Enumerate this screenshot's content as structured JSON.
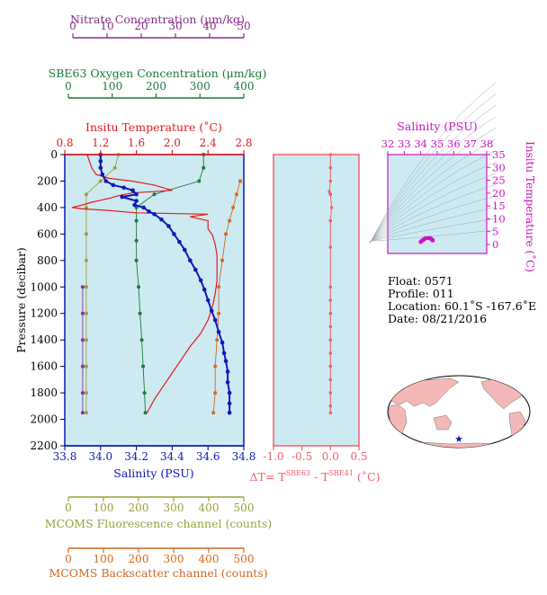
{
  "colors": {
    "nitrate": "#8a2e8a",
    "oxygen": "#1a7a3a",
    "temperature": "#e31a1c",
    "salinity": "#0a1ab8",
    "fluorescence": "#9aa03a",
    "backscatter": "#d2691e",
    "delta_t": "#f06070",
    "ts_axis": "#d010c0",
    "panel_bg": "#cdeaf2",
    "land": "#f4b8b8"
  },
  "axes": {
    "nitrate": {
      "label": "Nitrate Concentration (μm/kg)",
      "ticks": [
        "0",
        "10",
        "20",
        "30",
        "40",
        "50"
      ]
    },
    "oxygen": {
      "label": "SBE63 Oxygen Concentration (μm/kg)",
      "ticks": [
        "0",
        "100",
        "200",
        "300",
        "400"
      ]
    },
    "temperature": {
      "label": "Insitu Temperature (˚C)",
      "ticks": [
        "0.8",
        "1.2",
        "1.6",
        "2.0",
        "2.4",
        "2.8"
      ]
    },
    "salinity": {
      "label": "Salinity (PSU)",
      "ticks": [
        "33.8",
        "34.0",
        "34.2",
        "34.4",
        "34.6",
        "34.8"
      ]
    },
    "pressure": {
      "label": "Pressure (decibar)",
      "ticks": [
        "0",
        "200",
        "400",
        "600",
        "800",
        "1000",
        "1200",
        "1400",
        "1600",
        "1800",
        "2000",
        "2200"
      ]
    },
    "fluorescence": {
      "label": "MCOMS Fluorescence channel (counts)",
      "ticks": [
        "0",
        "100",
        "200",
        "300",
        "400",
        "500"
      ]
    },
    "backscatter": {
      "label": "MCOMS Backscatter channel (counts)",
      "ticks": [
        "0",
        "100",
        "200",
        "300",
        "400",
        "500"
      ]
    },
    "delta_t": {
      "label_prefix": "ΔT= T",
      "sup1": "SBE63",
      "mid": " - T",
      "sup2": "SBE41",
      "units": " (˚C)",
      "ticks": [
        "-1.0",
        "-0.5",
        "0.0",
        "0.5"
      ]
    },
    "ts_salinity": {
      "label": "Salinity (PSU)",
      "ticks": [
        "32",
        "33",
        "34",
        "35",
        "36",
        "37",
        "38"
      ]
    },
    "ts_temperature": {
      "label": "Insitu Temperature (˚C)",
      "ticks": [
        "0",
        "5",
        "10",
        "15",
        "20",
        "25",
        "30",
        "35"
      ]
    }
  },
  "info": {
    "float": "Float:  0571",
    "profile": "Profile:  011",
    "location": "Location:  60.1˚S  -167.6˚E",
    "date": "Date:  08/21/2016"
  },
  "chart_data": [
    {
      "type": "line",
      "panel": "main profile",
      "y_axis": "Pressure (decibar)",
      "ylim": [
        0,
        2200
      ],
      "y_inverted": true,
      "series": [
        {
          "name": "Salinity (PSU)",
          "xlim": [
            33.8,
            34.8
          ],
          "markers": true,
          "points": [
            [
              34.0,
              0
            ],
            [
              34.0,
              50
            ],
            [
              34.0,
              100
            ],
            [
              34.01,
              150
            ],
            [
              34.03,
              200
            ],
            [
              34.07,
              230
            ],
            [
              34.13,
              250
            ],
            [
              34.18,
              270
            ],
            [
              34.2,
              300
            ],
            [
              34.12,
              320
            ],
            [
              34.2,
              350
            ],
            [
              34.19,
              380
            ],
            [
              34.24,
              400
            ],
            [
              34.27,
              430
            ],
            [
              34.3,
              450
            ],
            [
              34.34,
              490
            ],
            [
              34.38,
              540
            ],
            [
              34.41,
              600
            ],
            [
              34.44,
              660
            ],
            [
              34.47,
              720
            ],
            [
              34.5,
              800
            ],
            [
              34.53,
              870
            ],
            [
              34.56,
              950
            ],
            [
              34.58,
              1020
            ],
            [
              34.6,
              1100
            ],
            [
              34.62,
              1180
            ],
            [
              34.64,
              1250
            ],
            [
              34.66,
              1340
            ],
            [
              34.68,
              1420
            ],
            [
              34.69,
              1500
            ],
            [
              34.7,
              1560
            ],
            [
              34.71,
              1640
            ],
            [
              34.71,
              1720
            ],
            [
              34.72,
              1800
            ],
            [
              34.72,
              1880
            ],
            [
              34.72,
              1950
            ]
          ]
        },
        {
          "name": "Insitu Temperature (˚C)",
          "xlim": [
            0.8,
            2.8
          ],
          "markers": false,
          "points": [
            [
              1.05,
              0
            ],
            [
              1.1,
              100
            ],
            [
              1.15,
              150
            ],
            [
              1.3,
              180
            ],
            [
              1.55,
              200
            ],
            [
              1.8,
              230
            ],
            [
              2.0,
              270
            ],
            [
              1.55,
              290
            ],
            [
              1.4,
              310
            ],
            [
              1.3,
              330
            ],
            [
              1.1,
              360
            ],
            [
              1.0,
              380
            ],
            [
              0.88,
              400
            ],
            [
              1.0,
              410
            ],
            [
              1.25,
              420
            ],
            [
              1.6,
              440
            ],
            [
              2.4,
              450
            ],
            [
              2.2,
              470
            ],
            [
              2.4,
              500
            ],
            [
              2.4,
              560
            ],
            [
              2.45,
              610
            ],
            [
              2.48,
              680
            ],
            [
              2.5,
              760
            ],
            [
              2.5,
              850
            ],
            [
              2.5,
              950
            ],
            [
              2.48,
              1050
            ],
            [
              2.45,
              1150
            ],
            [
              2.4,
              1250
            ],
            [
              2.32,
              1350
            ],
            [
              2.2,
              1450
            ],
            [
              2.1,
              1550
            ],
            [
              2.0,
              1650
            ],
            [
              1.9,
              1750
            ],
            [
              1.8,
              1850
            ],
            [
              1.72,
              1950
            ]
          ]
        },
        {
          "name": "SBE63 Oxygen Concentration (μm/kg)",
          "xlim": [
            0,
            400
          ],
          "markers": true,
          "points": [
            [
              310,
              0
            ],
            [
              310,
              100
            ],
            [
              300,
              200
            ],
            [
              200,
              300
            ],
            [
              160,
              400
            ],
            [
              160,
              500
            ],
            [
              160,
              650
            ],
            [
              160,
              800
            ],
            [
              165,
              1000
            ],
            [
              168,
              1200
            ],
            [
              172,
              1400
            ],
            [
              175,
              1600
            ],
            [
              178,
              1800
            ],
            [
              180,
              1950
            ]
          ]
        },
        {
          "name": "MCOMS Fluorescence channel (counts)",
          "xlim": [
            0,
            500
          ],
          "markers": true,
          "points": [
            [
              150,
              0
            ],
            [
              140,
              100
            ],
            [
              100,
              200
            ],
            [
              60,
              300
            ],
            [
              60,
              400
            ],
            [
              60,
              600
            ],
            [
              60,
              800
            ],
            [
              60,
              1000
            ],
            [
              60,
              1200
            ],
            [
              60,
              1400
            ],
            [
              60,
              1600
            ],
            [
              60,
              1800
            ],
            [
              60,
              1950
            ]
          ]
        },
        {
          "name": "MCOMS Backscatter channel (counts)",
          "xlim": [
            0,
            500
          ],
          "markers": true,
          "points": [
            [
              490,
              200
            ],
            [
              480,
              300
            ],
            [
              470,
              400
            ],
            [
              460,
              500
            ],
            [
              450,
              600
            ],
            [
              440,
              800
            ],
            [
              430,
              1000
            ],
            [
              430,
              1200
            ],
            [
              425,
              1400
            ],
            [
              420,
              1600
            ],
            [
              420,
              1800
            ],
            [
              415,
              1950
            ]
          ]
        },
        {
          "name": "Nitrate Concentration (μm/kg)",
          "xlim": [
            0,
            50
          ],
          "markers": true,
          "points": [
            [
              5,
              1000
            ],
            [
              5,
              1200
            ],
            [
              5,
              1400
            ],
            [
              5,
              1600
            ],
            [
              5,
              1800
            ],
            [
              5,
              1950
            ]
          ]
        }
      ]
    },
    {
      "type": "line",
      "panel": "delta T",
      "xlabel": "ΔT= TSBE63 - TSBE41 (˚C)",
      "xlim": [
        -1.0,
        0.5
      ],
      "ylim": [
        0,
        2200
      ],
      "y_inverted": true,
      "series": [
        {
          "name": "ΔT",
          "markers": true,
          "points": [
            [
              0.0,
              0
            ],
            [
              0.0,
              100
            ],
            [
              0.0,
              200
            ],
            [
              -0.02,
              280
            ],
            [
              0.0,
              300
            ],
            [
              0.02,
              400
            ],
            [
              0.0,
              500
            ],
            [
              0.0,
              700
            ],
            [
              0.0,
              1000
            ],
            [
              0.0,
              1100
            ],
            [
              0.0,
              1200
            ],
            [
              0.0,
              1300
            ],
            [
              0.0,
              1400
            ],
            [
              0.0,
              1500
            ],
            [
              0.0,
              1600
            ],
            [
              0.0,
              1700
            ],
            [
              0.0,
              1800
            ],
            [
              0.0,
              1900
            ],
            [
              0.0,
              1950
            ]
          ]
        }
      ]
    },
    {
      "type": "scatter",
      "panel": "T-S diagram",
      "xlabel": "Salinity (PSU)",
      "ylabel": "Insitu Temperature (˚C)",
      "xlim": [
        32,
        38
      ],
      "ylim": [
        -2,
        35
      ],
      "points": [
        [
          34.0,
          1.0
        ],
        [
          34.1,
          1.6
        ],
        [
          34.2,
          2.0
        ],
        [
          34.3,
          2.4
        ],
        [
          34.5,
          2.5
        ],
        [
          34.6,
          2.3
        ],
        [
          34.7,
          1.8
        ],
        [
          34.72,
          1.6
        ]
      ]
    }
  ]
}
